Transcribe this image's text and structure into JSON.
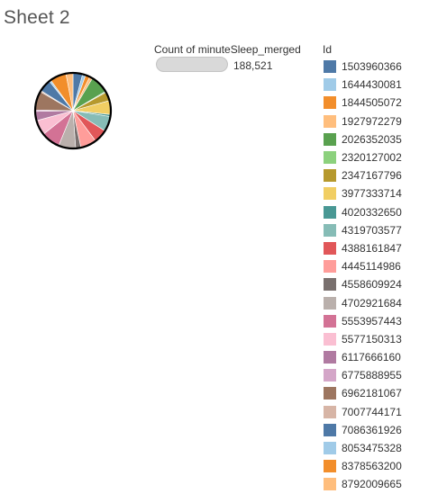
{
  "sheet": {
    "title": "Sheet 2"
  },
  "size_legend": {
    "title": "Count of minuteSleep_merged",
    "value": "188,521"
  },
  "chart_data": {
    "type": "pie",
    "title": "",
    "measure": "Count of minuteSleep_merged",
    "total": 188521,
    "legend_title": "Id",
    "legend_placement": "right",
    "border_color": "#000000",
    "slices": [
      {
        "label": "1503960366",
        "value": 7790,
        "color": "#4e79a7"
      },
      {
        "label": "1644430081",
        "value": 2560,
        "color": "#a0cbe8"
      },
      {
        "label": "1844505072",
        "value": 3550,
        "color": "#f28e2b"
      },
      {
        "label": "1927972279",
        "value": 2410,
        "color": "#ffbe7d"
      },
      {
        "label": "2026352035",
        "value": 14900,
        "color": "#59a14f"
      },
      {
        "label": "2320127002",
        "value": 900,
        "color": "#8cd17d"
      },
      {
        "label": "2347167796",
        "value": 7200,
        "color": "#b6992d"
      },
      {
        "label": "3977333714",
        "value": 11200,
        "color": "#f1ce63"
      },
      {
        "label": "4020332650",
        "value": 1700,
        "color": "#499894"
      },
      {
        "label": "4319703577",
        "value": 12300,
        "color": "#86bcb6"
      },
      {
        "label": "4388161847",
        "value": 11000,
        "color": "#e15759"
      },
      {
        "label": "4445114986",
        "value": 13000,
        "color": "#ff9d9a"
      },
      {
        "label": "4558609924",
        "value": 4200,
        "color": "#79706e"
      },
      {
        "label": "4702921684",
        "value": 13900,
        "color": "#bab0ac"
      },
      {
        "label": "5553957443",
        "value": 15300,
        "color": "#d37295"
      },
      {
        "label": "5577150313",
        "value": 12300,
        "color": "#fabfd2"
      },
      {
        "label": "6117666160",
        "value": 7500,
        "color": "#b07aa1"
      },
      {
        "label": "6775888955",
        "value": 1200,
        "color": "#d4a6c8"
      },
      {
        "label": "6962181067",
        "value": 15300,
        "color": "#9d7660"
      },
      {
        "label": "7007744171",
        "value": 1000,
        "color": "#d7b5a6"
      },
      {
        "label": "7086361926",
        "value": 10100,
        "color": "#4e79a7"
      },
      {
        "label": "8053475328",
        "value": 1400,
        "color": "#a0cbe8"
      },
      {
        "label": "8378563200",
        "value": 13300,
        "color": "#f28e2b"
      },
      {
        "label": "8792009665",
        "value": 5700,
        "color": "#ffbe7d"
      }
    ]
  }
}
